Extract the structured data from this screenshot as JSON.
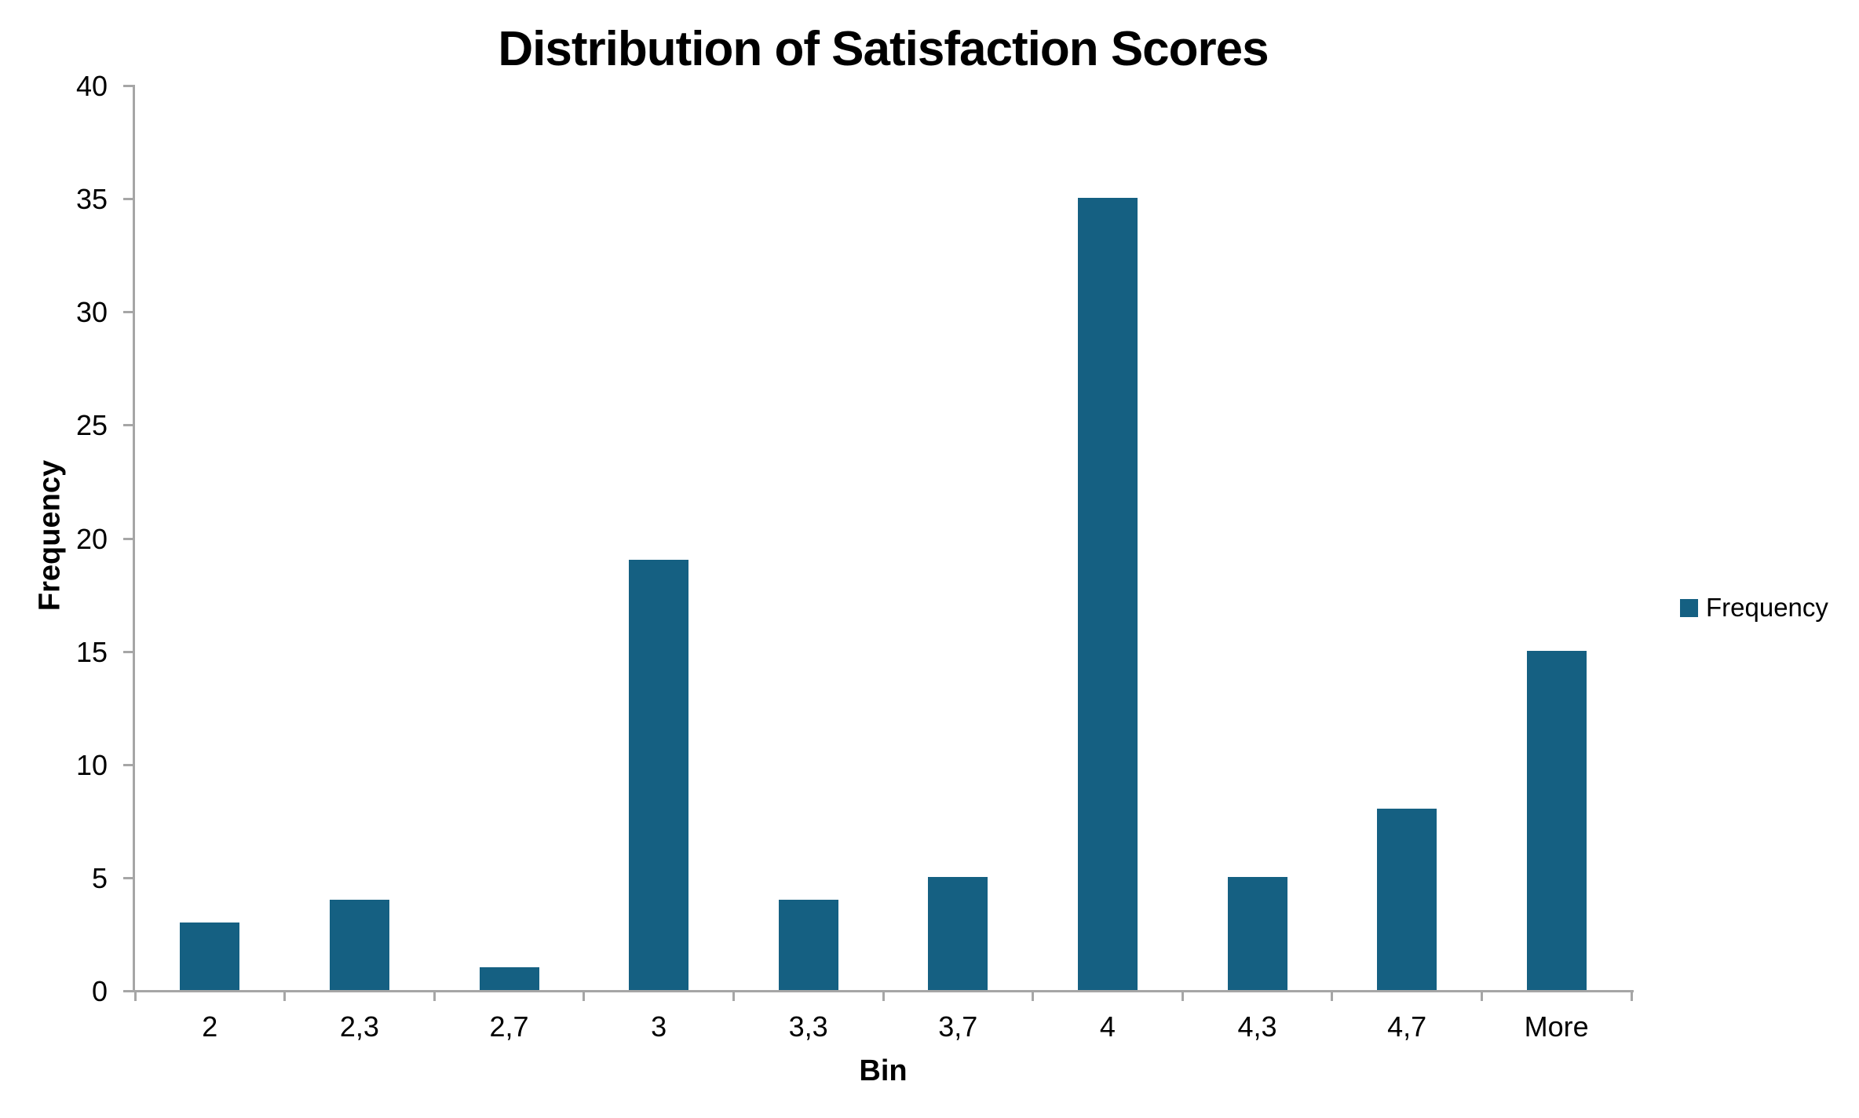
{
  "chart_data": {
    "type": "bar",
    "title": "Distribution of Satisfaction Scores",
    "categories": [
      "2",
      "2,3",
      "2,7",
      "3",
      "3,3",
      "3,7",
      "4",
      "4,3",
      "4,7",
      "More"
    ],
    "series": [
      {
        "name": "Frequency",
        "values": [
          3,
          4,
          1,
          19,
          4,
          5,
          35,
          5,
          8,
          15
        ]
      }
    ],
    "xlabel": "Bin",
    "ylabel": "Frequency",
    "ylim": [
      0,
      40
    ],
    "ytick_step": 5,
    "yticks": [
      0,
      5,
      10,
      15,
      20,
      25,
      30,
      35,
      40
    ],
    "grid": false,
    "legend_position": "right",
    "bar_color": "#156082",
    "axis_color": "#a6a6a6",
    "text_color": "#000000",
    "background_color": "#ffffff"
  },
  "legend": {
    "label": "Frequency"
  }
}
